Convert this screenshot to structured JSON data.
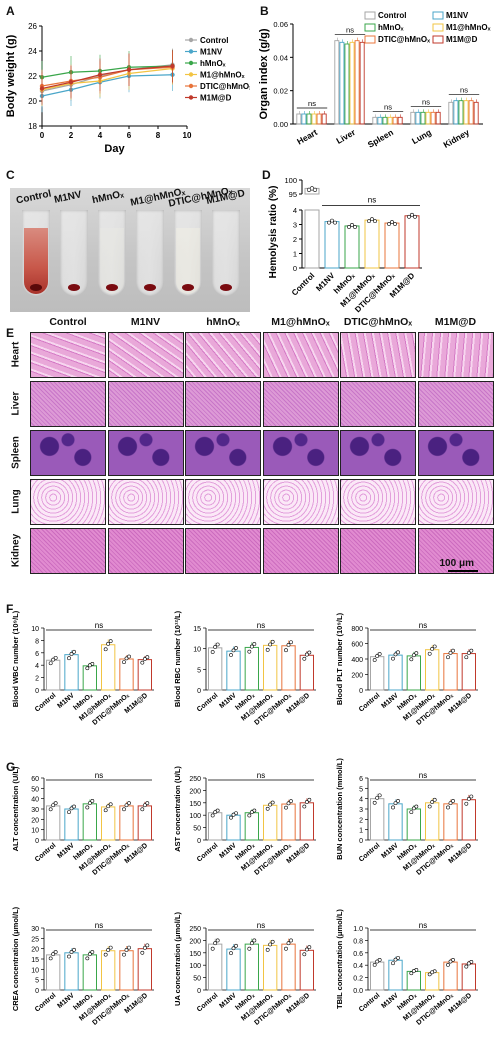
{
  "panels": {
    "A": "A",
    "B": "B",
    "C": "C",
    "D": "D",
    "E": "E",
    "F": "F",
    "G": "G"
  },
  "groups": [
    "Control",
    "M1NV",
    "hMnOₓ",
    "M1@hMnOₓ",
    "DTIC@hMnOₓ",
    "M1M@D"
  ],
  "colors": [
    "#a6a6a6",
    "#4aa6c9",
    "#39a64a",
    "#f2c443",
    "#e8743b",
    "#c0392b"
  ],
  "sig": "ns",
  "chartA": {
    "ylabel": "Body weight (g)",
    "xlabel": "Day",
    "xticks": [
      0,
      2,
      4,
      6,
      8,
      10
    ],
    "yticks": [
      18,
      20,
      22,
      24,
      26
    ],
    "x": [
      0,
      2,
      4,
      6,
      9
    ],
    "series": [
      [
        20.8,
        21.3,
        22.0,
        22.5,
        22.9
      ],
      [
        20.4,
        20.9,
        21.5,
        22.0,
        22.1
      ],
      [
        21.9,
        22.3,
        22.4,
        22.7,
        22.8
      ],
      [
        20.9,
        21.4,
        21.6,
        22.2,
        22.6
      ],
      [
        21.2,
        21.6,
        21.9,
        22.5,
        22.7
      ],
      [
        21.0,
        21.5,
        22.1,
        22.5,
        22.8
      ]
    ]
  },
  "chartB": {
    "ylabel": "Organ index (g/g)",
    "categories": [
      "Heart",
      "Liver",
      "Spleen",
      "Lung",
      "Kidney"
    ],
    "yticks": [
      "0.00",
      "0.02",
      "0.04",
      "0.06"
    ],
    "values": [
      [
        0.006,
        0.006,
        0.006,
        0.006,
        0.006,
        0.006
      ],
      [
        0.05,
        0.049,
        0.048,
        0.049,
        0.05,
        0.049
      ],
      [
        0.004,
        0.004,
        0.004,
        0.004,
        0.004,
        0.004
      ],
      [
        0.007,
        0.007,
        0.007,
        0.007,
        0.007,
        0.007
      ],
      [
        0.013,
        0.014,
        0.014,
        0.014,
        0.014,
        0.013
      ]
    ]
  },
  "chartD": {
    "ylabel": "Hemolysis ratio (%)",
    "values": [
      97,
      3.2,
      2.9,
      3.3,
      3.1,
      3.6
    ],
    "yticks_low": [
      0,
      1,
      2,
      3,
      4
    ],
    "yticks_high": [
      95,
      100
    ]
  },
  "histo": {
    "rows": [
      "Heart",
      "Liver",
      "Spleen",
      "Lung",
      "Kidney"
    ],
    "scale": "100 μm"
  },
  "chartF": [
    {
      "ylabel": "Blood WBC number (10⁹/L)",
      "yticks": [
        0,
        2,
        4,
        6,
        8,
        10
      ],
      "ymax": 10,
      "values": [
        4.8,
        5.7,
        3.9,
        7.3,
        5.0,
        4.9
      ]
    },
    {
      "ylabel": "Blood RBC number (10¹²/L)",
      "yticks": [
        0,
        5,
        10,
        15
      ],
      "ymax": 15,
      "values": [
        10.2,
        9.4,
        10.3,
        10.8,
        10.7,
        8.4
      ]
    },
    {
      "ylabel": "Blood PLT number (10⁹/L)",
      "yticks": [
        0,
        200,
        400,
        600,
        800
      ],
      "ymax": 800,
      "values": [
        430,
        450,
        440,
        520,
        470,
        470
      ]
    }
  ],
  "chartG": [
    {
      "ylabel": "ALT concentration (U/L)",
      "yticks": [
        0,
        10,
        20,
        30,
        40,
        50,
        60
      ],
      "ymax": 60,
      "values": [
        33,
        30,
        35,
        32,
        33,
        33
      ]
    },
    {
      "ylabel": "AST concentration (U/L)",
      "yticks": [
        0,
        50,
        100,
        150,
        200,
        250
      ],
      "ymax": 250,
      "values": [
        110,
        100,
        110,
        140,
        145,
        150
      ]
    },
    {
      "ylabel": "BUN concentration (mmol/L)",
      "yticks": [
        0,
        1,
        2,
        3,
        4,
        5,
        6
      ],
      "ymax": 6,
      "values": [
        4.0,
        3.5,
        3.0,
        3.6,
        3.5,
        3.9
      ]
    },
    {
      "ylabel": "CREA concentration (μmol/L)",
      "yticks": [
        0,
        5,
        10,
        15,
        20,
        25,
        30
      ],
      "ymax": 30,
      "values": [
        17,
        18,
        17,
        19,
        19,
        20
      ]
    },
    {
      "ylabel": "UA concentration (μmol/L)",
      "yticks": [
        0,
        50,
        100,
        150,
        200,
        250
      ],
      "ymax": 250,
      "values": [
        185,
        165,
        185,
        180,
        185,
        160
      ]
    },
    {
      "ylabel": "TBIL concentration (μmol/L)",
      "yticks": [
        "0.0",
        "0.2",
        "0.4",
        "0.6",
        "0.8",
        "1.0"
      ],
      "ymax": 1.0,
      "values": [
        0.45,
        0.48,
        0.3,
        0.28,
        0.45,
        0.42
      ]
    }
  ]
}
